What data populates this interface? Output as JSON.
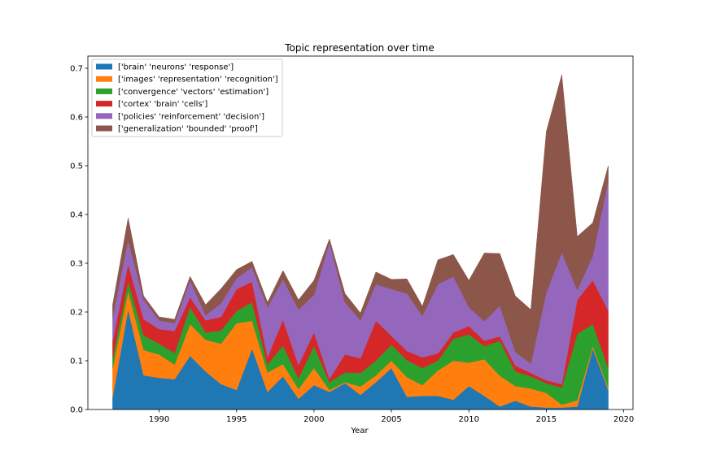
{
  "chart_data": {
    "type": "area",
    "title": "Topic representation over time",
    "xlabel": "Year",
    "ylabel": "",
    "xlim": [
      1985.4,
      2020.6
    ],
    "ylim": [
      0,
      0.725
    ],
    "xticks": [
      1990,
      1995,
      2000,
      2005,
      2010,
      2015,
      2020
    ],
    "yticks": [
      0.0,
      0.1,
      0.2,
      0.3,
      0.4,
      0.5,
      0.6,
      0.7
    ],
    "xtick_labels": [
      "1990",
      "1995",
      "2000",
      "2005",
      "2010",
      "2015",
      "2020"
    ],
    "ytick_labels": [
      "0.0",
      "0.1",
      "0.2",
      "0.3",
      "0.4",
      "0.5",
      "0.6",
      "0.7"
    ],
    "legend_position": "upper-left",
    "grid": false,
    "x": [
      1987,
      1988,
      1989,
      1990,
      1991,
      1992,
      1993,
      1994,
      1995,
      1996,
      1997,
      1998,
      1999,
      2000,
      2001,
      2002,
      2003,
      2004,
      2005,
      2006,
      2007,
      2008,
      2009,
      2010,
      2011,
      2012,
      2013,
      2014,
      2015,
      2016,
      2017,
      2018,
      2019
    ],
    "series": [
      {
        "name": "['brain' 'neurons' 'response']",
        "color": "#1f77b4",
        "values": [
          0.025,
          0.205,
          0.07,
          0.065,
          0.062,
          0.11,
          0.078,
          0.052,
          0.04,
          0.125,
          0.036,
          0.068,
          0.022,
          0.05,
          0.036,
          0.054,
          0.03,
          0.056,
          0.085,
          0.026,
          0.028,
          0.028,
          0.02,
          0.048,
          0.028,
          0.006,
          0.018,
          0.006,
          0.004,
          0.004,
          0.006,
          0.125,
          0.04
        ]
      },
      {
        "name": "['images' 'representation' 'recognition']",
        "color": "#ff7f0e",
        "values": [
          0.06,
          0.038,
          0.052,
          0.048,
          0.03,
          0.065,
          0.065,
          0.083,
          0.137,
          0.057,
          0.04,
          0.025,
          0.02,
          0.035,
          0.004,
          0.002,
          0.017,
          0.014,
          0.015,
          0.04,
          0.022,
          0.052,
          0.08,
          0.048,
          0.075,
          0.063,
          0.03,
          0.037,
          0.03,
          0.006,
          0.013,
          0.005,
          0.005
        ]
      },
      {
        "name": "['convergence' 'vectors' 'estimation']",
        "color": "#2ca02c",
        "values": [
          0.02,
          0.02,
          0.03,
          0.022,
          0.024,
          0.035,
          0.015,
          0.027,
          0.025,
          0.038,
          0.016,
          0.038,
          0.022,
          0.045,
          0.016,
          0.02,
          0.028,
          0.03,
          0.033,
          0.035,
          0.035,
          0.02,
          0.045,
          0.058,
          0.027,
          0.072,
          0.03,
          0.025,
          0.02,
          0.035,
          0.136,
          0.045,
          0.04
        ]
      },
      {
        "name": "['cortex' 'brain' 'cells']",
        "color": "#d62728",
        "values": [
          0.035,
          0.035,
          0.033,
          0.03,
          0.045,
          0.02,
          0.025,
          0.028,
          0.045,
          0.042,
          0.015,
          0.053,
          0.027,
          0.028,
          0.007,
          0.037,
          0.03,
          0.082,
          0.018,
          0.019,
          0.022,
          0.015,
          0.013,
          0.017,
          0.011,
          0.009,
          0.012,
          0.007,
          0.006,
          0.007,
          0.07,
          0.09,
          0.118
        ]
      },
      {
        "name": "['policies' 'reinforcement' 'decision']",
        "color": "#9467bd",
        "values": [
          0.05,
          0.05,
          0.04,
          0.018,
          0.016,
          0.035,
          0.01,
          0.028,
          0.022,
          0.03,
          0.103,
          0.083,
          0.114,
          0.077,
          0.28,
          0.107,
          0.078,
          0.075,
          0.096,
          0.118,
          0.085,
          0.142,
          0.115,
          0.039,
          0.04,
          0.063,
          0.028,
          0.019,
          0.18,
          0.27,
          0.02,
          0.05,
          0.267
        ]
      },
      {
        "name": "['generalization' 'bounded' 'proof']",
        "color": "#8c564b",
        "values": [
          0.025,
          0.045,
          0.008,
          0.007,
          0.008,
          0.008,
          0.022,
          0.03,
          0.018,
          0.012,
          0.01,
          0.018,
          0.02,
          0.03,
          0.007,
          0.018,
          0.015,
          0.025,
          0.02,
          0.03,
          0.02,
          0.05,
          0.045,
          0.055,
          0.14,
          0.107,
          0.115,
          0.111,
          0.33,
          0.365,
          0.11,
          0.068,
          0.03
        ]
      }
    ]
  }
}
